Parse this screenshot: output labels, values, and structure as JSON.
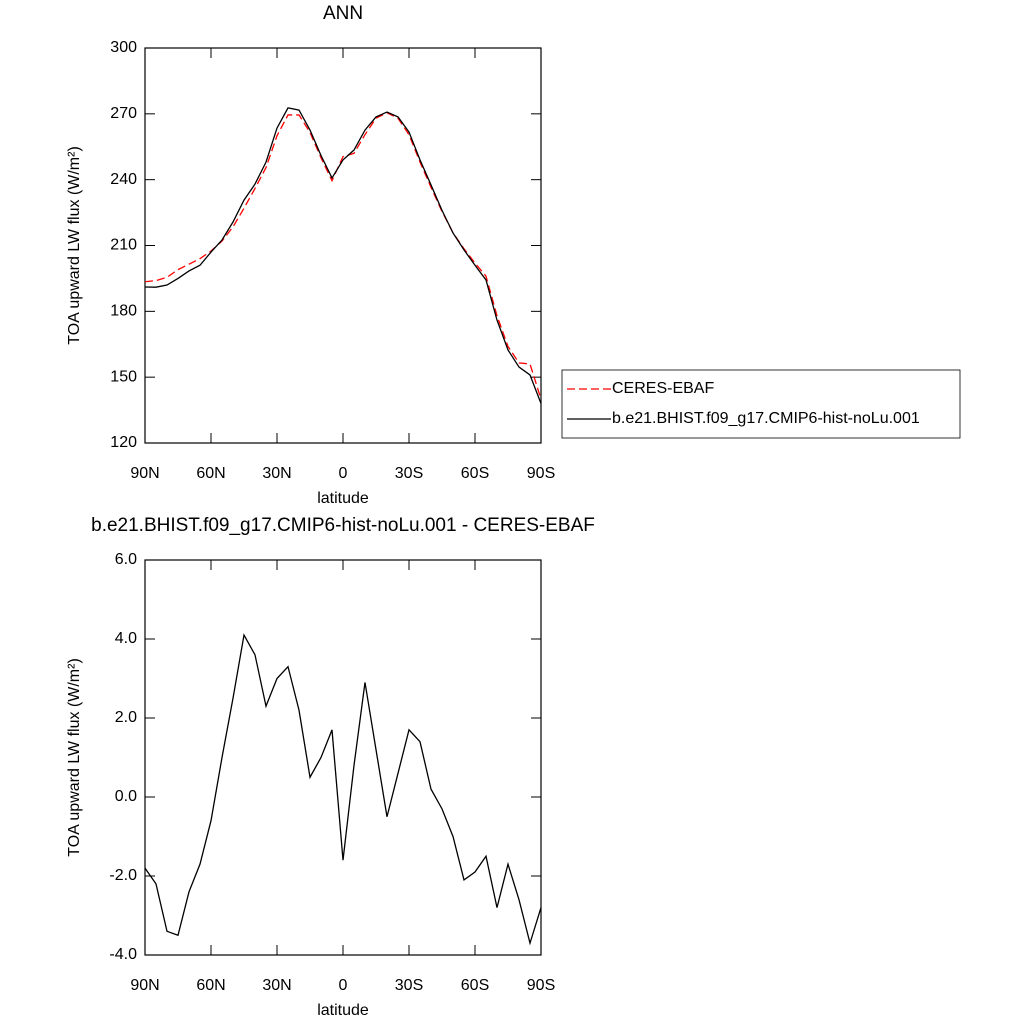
{
  "chart_data": [
    {
      "type": "line",
      "title": "ANN",
      "xlabel": "latitude",
      "ylabel": "TOA upward LW flux (W/m²)",
      "x": [
        90,
        85,
        80,
        75,
        70,
        65,
        60,
        55,
        50,
        45,
        40,
        35,
        30,
        25,
        20,
        15,
        10,
        5,
        0,
        -5,
        -10,
        -15,
        -20,
        -25,
        -30,
        -35,
        -40,
        -45,
        -50,
        -55,
        -60,
        -65,
        -70,
        -75,
        -80,
        -85,
        -90
      ],
      "xlim": [
        90,
        -90
      ],
      "xticks": [
        {
          "value": 90,
          "label": "90N"
        },
        {
          "value": 60,
          "label": "60N"
        },
        {
          "value": 30,
          "label": "30N"
        },
        0,
        {
          "value": -30,
          "label": "30S"
        },
        {
          "value": -60,
          "label": "60S"
        },
        {
          "value": -90,
          "label": "90S"
        }
      ],
      "ylim": [
        120,
        300
      ],
      "yticks": [
        120,
        150,
        180,
        210,
        240,
        270,
        300
      ],
      "legend": "right",
      "series": [
        {
          "name": "CERES-EBAF",
          "color": "#ff0000",
          "linestyle": "dashed",
          "values": [
            193.5,
            194,
            195.5,
            199,
            201.5,
            204,
            207.5,
            212,
            218.5,
            227,
            236,
            245.5,
            260,
            269.5,
            269.5,
            261.5,
            250,
            239.5,
            250.5,
            252,
            260.5,
            268,
            270.5,
            268,
            260.5,
            248,
            236.5,
            225.5,
            215.8,
            208.5,
            202,
            196,
            178,
            164,
            156.5,
            156,
            140
          ]
        },
        {
          "name": "b.e21.BHIST.f09_g17.CMIP6-hist-noLu.001",
          "color": "#000000",
          "linestyle": "solid",
          "values": [
            191.1,
            191,
            192,
            195,
            198.4,
            201,
            207,
            212.5,
            220.7,
            230.7,
            238,
            248,
            263.5,
            272.7,
            271.7,
            262.6,
            251,
            240.8,
            249,
            253.5,
            262.6,
            268.6,
            270.8,
            268.6,
            261.7,
            249,
            237.6,
            226,
            215.7,
            208,
            201,
            194.3,
            176,
            162.4,
            154.6,
            151,
            138
          ]
        }
      ]
    },
    {
      "type": "line",
      "title": "b.e21.BHIST.f09_g17.CMIP6-hist-noLu.001 - CERES-EBAF",
      "xlabel": "latitude",
      "ylabel": "TOA upward LW flux (W/m²)",
      "x": [
        90,
        85,
        80,
        75,
        70,
        65,
        60,
        55,
        50,
        45,
        40,
        35,
        30,
        25,
        20,
        15,
        10,
        5,
        0,
        -5,
        -10,
        -15,
        -20,
        -25,
        -30,
        -35,
        -40,
        -45,
        -50,
        -55,
        -60,
        -65,
        -70,
        -75,
        -80,
        -85,
        -90
      ],
      "xlim": [
        90,
        -90
      ],
      "xticks": [
        {
          "value": 90,
          "label": "90N"
        },
        {
          "value": 60,
          "label": "60N"
        },
        {
          "value": 30,
          "label": "30N"
        },
        0,
        {
          "value": -30,
          "label": "30S"
        },
        {
          "value": -60,
          "label": "60S"
        },
        {
          "value": -90,
          "label": "90S"
        }
      ],
      "ylim": [
        -4,
        6
      ],
      "yticks": [
        {
          "value": -4,
          "label": "-4.0"
        },
        {
          "value": -2,
          "label": "-2.0"
        },
        {
          "value": 0,
          "label": "0.0"
        },
        {
          "value": 2,
          "label": "2.0"
        },
        {
          "value": 4,
          "label": "4.0"
        },
        {
          "value": 6,
          "label": "6.0"
        }
      ],
      "series": [
        {
          "color": "#000000",
          "linestyle": "solid",
          "values": [
            -1.8,
            -2.2,
            -3.4,
            -3.5,
            -2.4,
            -1.7,
            -0.6,
            1.0,
            2.5,
            4.1,
            3.6,
            2.3,
            3.0,
            3.3,
            2.2,
            0.5,
            1.0,
            1.7,
            -1.6,
            0.8,
            2.9,
            1.2,
            -0.5,
            0.6,
            1.7,
            1.4,
            0.2,
            -0.3,
            -1.0,
            -2.1,
            -1.9,
            -1.5,
            -2.8,
            -1.7,
            -2.6,
            -3.7,
            -2.8
          ]
        }
      ]
    }
  ]
}
